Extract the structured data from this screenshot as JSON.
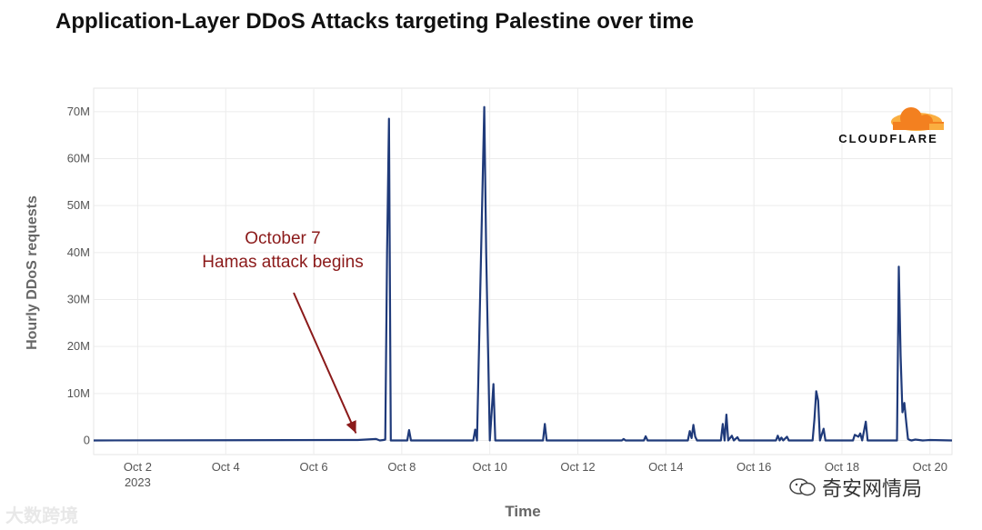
{
  "chart_data": {
    "type": "line",
    "title": "Application-Layer DDoS Attacks targeting Palestine over time",
    "xlabel": "Time",
    "ylabel": "Hourly DDoS requests",
    "x_start": "2023-10-01T00:00",
    "x_end": "2023-10-20T12:00",
    "ylim": [
      -3000000,
      75000000
    ],
    "y_ticks": [
      0,
      10000000,
      20000000,
      30000000,
      40000000,
      50000000,
      60000000,
      70000000
    ],
    "y_tick_labels": [
      "0",
      "10M",
      "20M",
      "30M",
      "40M",
      "50M",
      "60M",
      "70M"
    ],
    "x_ticks": [
      "2023-10-02",
      "2023-10-04",
      "2023-10-06",
      "2023-10-08",
      "2023-10-10",
      "2023-10-12",
      "2023-10-14",
      "2023-10-16",
      "2023-10-18",
      "2023-10-20"
    ],
    "x_tick_labels": [
      "Oct 2",
      "Oct 4",
      "Oct 6",
      "Oct 8",
      "Oct 10",
      "Oct 12",
      "Oct 14",
      "Oct 16",
      "Oct 18",
      "Oct 20"
    ],
    "x_sublabel": "2023",
    "grid": true,
    "color": "#1f3a7a",
    "series": [
      {
        "x": [
          "2023-10-01T00:00",
          "2023-10-07T00:00",
          "2023-10-07T10:00",
          "2023-10-07T12:00",
          "2023-10-07T14:00",
          "2023-10-07T15:00",
          "2023-10-07T16:00",
          "2023-10-07T17:00",
          "2023-10-07T18:00",
          "2023-10-08T03:00",
          "2023-10-08T04:00",
          "2023-10-08T05:00",
          "2023-10-09T15:00",
          "2023-10-09T16:00",
          "2023-10-09T17:00",
          "2023-10-09T21:00",
          "2023-10-09T22:00",
          "2023-10-10T00:00",
          "2023-10-10T02:00",
          "2023-10-10T03:00",
          "2023-10-10T04:00",
          "2023-10-10T05:00",
          "2023-10-11T05:00",
          "2023-10-11T06:00",
          "2023-10-11T07:00",
          "2023-10-13T00:00",
          "2023-10-13T01:00",
          "2023-10-13T02:00",
          "2023-10-13T12:00",
          "2023-10-13T13:00",
          "2023-10-13T14:00",
          "2023-10-14T12:00",
          "2023-10-14T13:00",
          "2023-10-14T14:00",
          "2023-10-14T15:00",
          "2023-10-14T16:00",
          "2023-10-14T17:00",
          "2023-10-15T06:00",
          "2023-10-15T07:00",
          "2023-10-15T08:00",
          "2023-10-15T09:00",
          "2023-10-15T10:00",
          "2023-10-15T12:00",
          "2023-10-15T13:00",
          "2023-10-15T15:00",
          "2023-10-15T16:00",
          "2023-10-15T17:00",
          "2023-10-16T12:00",
          "2023-10-16T13:00",
          "2023-10-16T14:00",
          "2023-10-16T15:00",
          "2023-10-16T16:00",
          "2023-10-16T18:00",
          "2023-10-16T19:00",
          "2023-10-17T08:00",
          "2023-10-17T09:00",
          "2023-10-17T10:00",
          "2023-10-17T11:00",
          "2023-10-17T12:00",
          "2023-10-17T14:00",
          "2023-10-17T15:00",
          "2023-10-17T16:00",
          "2023-10-18T06:00",
          "2023-10-18T07:00",
          "2023-10-18T09:00",
          "2023-10-18T10:00",
          "2023-10-18T11:00",
          "2023-10-18T13:00",
          "2023-10-18T14:00",
          "2023-10-18T15:00",
          "2023-10-19T06:00",
          "2023-10-19T07:00",
          "2023-10-19T08:00",
          "2023-10-19T09:00",
          "2023-10-19T10:00",
          "2023-10-19T11:00",
          "2023-10-19T12:00",
          "2023-10-19T13:00",
          "2023-10-19T14:00",
          "2023-10-19T16:00",
          "2023-10-19T20:00",
          "2023-10-20T00:00",
          "2023-10-20T12:00"
        ],
        "y": [
          0,
          100000,
          300000,
          0,
          100000,
          200000,
          40000000,
          68500000,
          0,
          0,
          2200000,
          0,
          0,
          2300000,
          0,
          71000000,
          40000000,
          0,
          12000000,
          0,
          0,
          0,
          0,
          3500000,
          0,
          0,
          300000,
          0,
          0,
          900000,
          0,
          0,
          2000000,
          500000,
          3300000,
          800000,
          0,
          0,
          3500000,
          0,
          5500000,
          0,
          1000000,
          0,
          700000,
          0,
          0,
          0,
          1000000,
          0,
          600000,
          0,
          800000,
          0,
          0,
          4500000,
          10500000,
          8500000,
          0,
          2500000,
          0,
          0,
          0,
          1200000,
          800000,
          1500000,
          0,
          4000000,
          0,
          0,
          0,
          37000000,
          18000000,
          6000000,
          8000000,
          4000000,
          300000,
          100000,
          0,
          200000,
          0,
          100000,
          0
        ]
      }
    ],
    "annotation": {
      "lines": [
        "October 7",
        "Hamas attack begins"
      ],
      "color": "#8b1a1a",
      "arrow_target": {
        "x": "2023-10-07T00:00",
        "y": 0
      }
    }
  },
  "brand": {
    "name": "CLOUDFLARE",
    "colors": {
      "orange_dark": "#f38020",
      "orange_light": "#faae40"
    }
  },
  "watermarks": {
    "left": "大数跨境",
    "right": "奇安网情局"
  }
}
